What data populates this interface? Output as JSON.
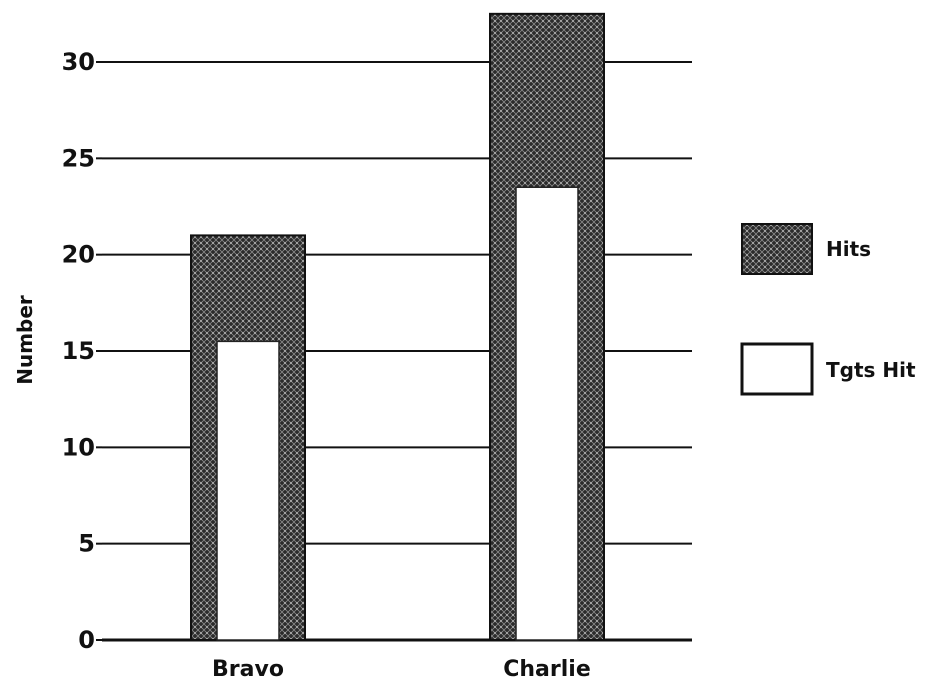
{
  "chart_data": {
    "type": "bar",
    "title": "",
    "xlabel": "",
    "ylabel": "Number",
    "ylim": [
      0,
      30
    ],
    "yticks": [
      0,
      5,
      10,
      15,
      20,
      25,
      30
    ],
    "categories": [
      "Bravo",
      "Charlie"
    ],
    "series": [
      {
        "name": "Hits",
        "values": [
          21,
          32.5
        ],
        "color": "#2a2a2a",
        "fill": "hatched-dark"
      },
      {
        "name": "Tgts Hit",
        "values": [
          15.5,
          23.5
        ],
        "color": "#ffffff",
        "fill": "white"
      }
    ],
    "grid": true,
    "legend_position": "right"
  }
}
